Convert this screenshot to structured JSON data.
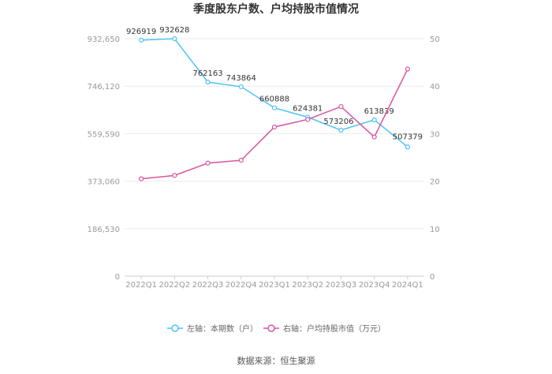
{
  "chart_data": {
    "type": "line",
    "title": "季度股东户数、户均持股市值情况",
    "categories": [
      "2022Q1",
      "2022Q2",
      "2022Q3",
      "2022Q4",
      "2023Q1",
      "2023Q2",
      "2023Q3",
      "2023Q4",
      "2024Q1"
    ],
    "left_axis": {
      "ticks": [
        "0",
        "186,530",
        "373,060",
        "559,590",
        "746,120",
        "932,650"
      ],
      "min": 0,
      "max": 932650
    },
    "right_axis": {
      "ticks": [
        "0",
        "10",
        "20",
        "30",
        "40",
        "50"
      ],
      "min": 0,
      "max": 50
    },
    "grid": true,
    "legend_position": "bottom",
    "series": [
      {
        "name": "左轴：本期数（户）",
        "axis": "left",
        "color": "#4fc3f7",
        "values": [
          926919,
          932628,
          762163,
          743864,
          660888,
          624381,
          573206,
          613839,
          507379
        ],
        "labels": [
          "926919",
          "932628",
          "762163",
          "743864",
          "660888",
          "624381",
          "573206",
          "613839",
          "507379"
        ]
      },
      {
        "name": "右轴：户均持股市值（万元）",
        "axis": "right",
        "color": "#d9559e",
        "values": [
          20.5,
          21.2,
          23.8,
          24.4,
          31.4,
          33.0,
          35.7,
          29.3,
          43.6
        ]
      }
    ]
  },
  "source": "数据来源：恒生聚源"
}
